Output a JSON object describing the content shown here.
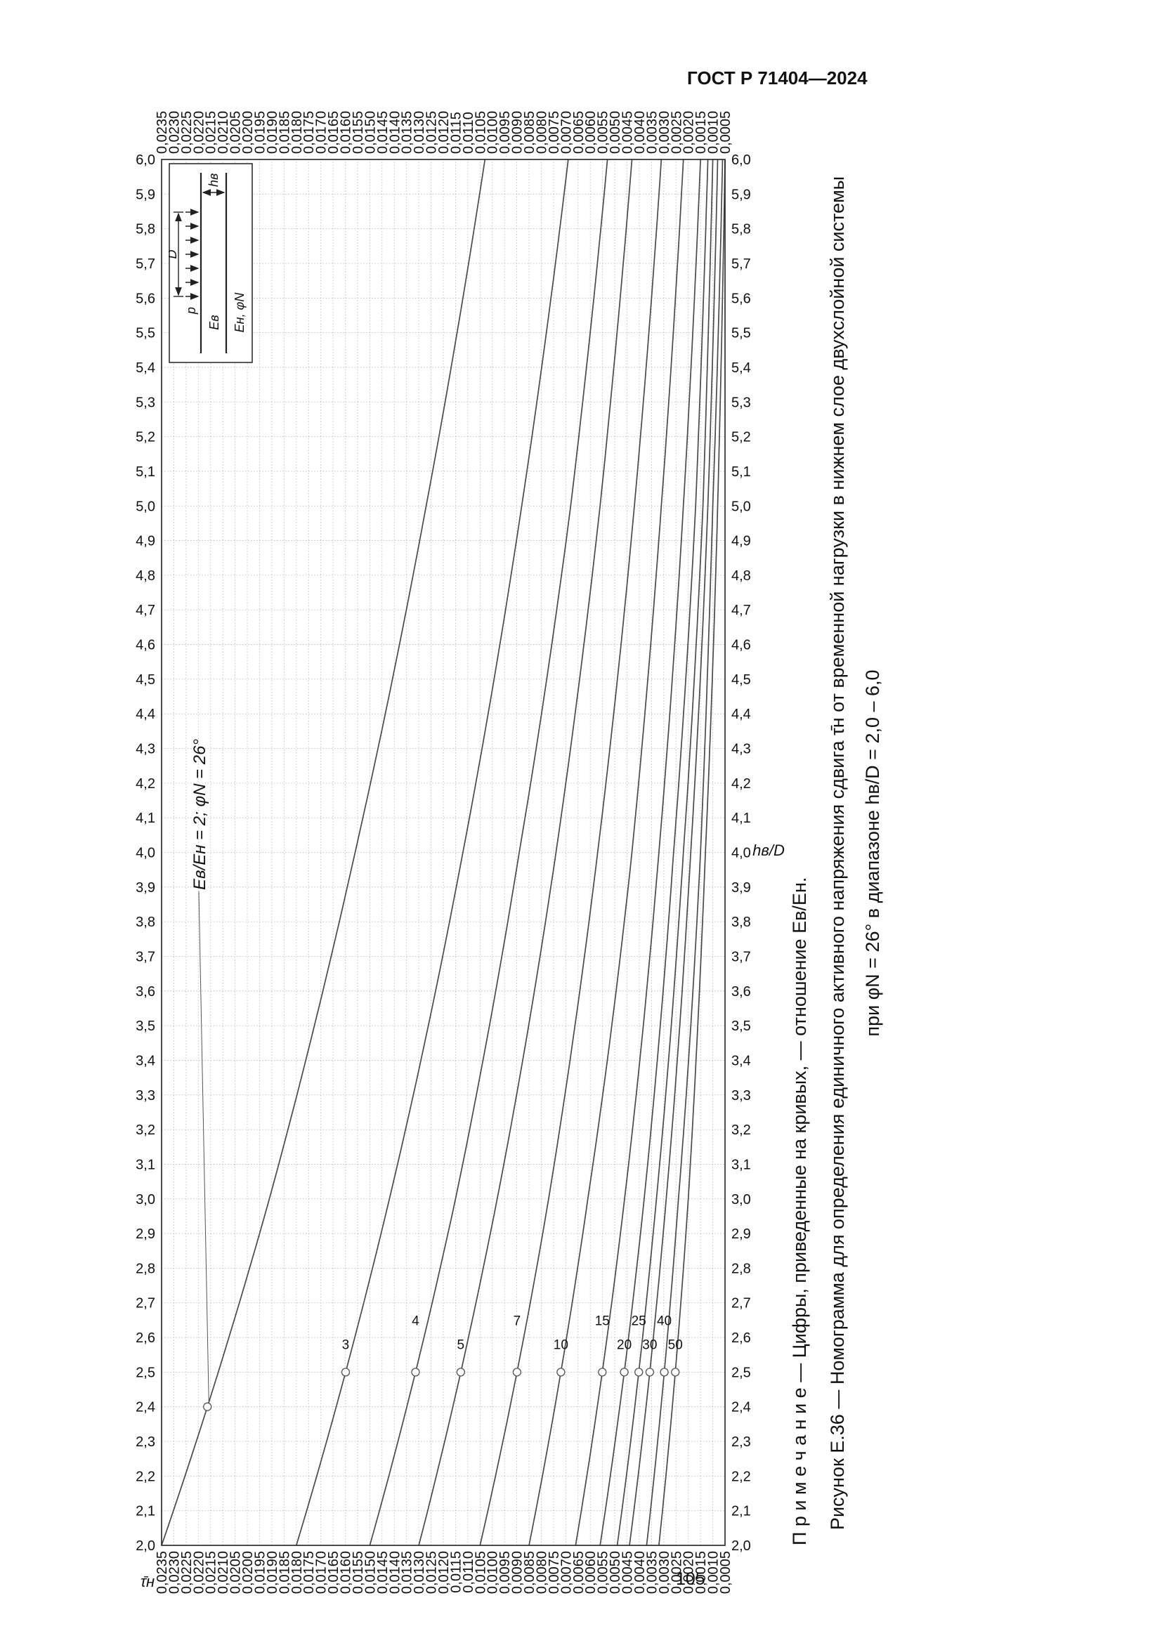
{
  "page": {
    "header": "ГОСТ Р 71404—2024",
    "page_number": "105"
  },
  "figure": {
    "note": "П р и м е ч а н и е — Цифры, приведенные на кривых, — отношение Eв/Eн.",
    "caption_line1": "Рисунок Е.36 — Номограмма для определения единичного активного напряжения сдвига τ̄н от временной нагрузки в нижнем слое двухслойной системы",
    "caption_line2": "при φN = 26° в диапазоне hв/D = 2,0 – 6,0",
    "inset": {
      "load": "p",
      "diameter": "D",
      "layer_top": "Eв",
      "layer_bottom": "Eн, φN",
      "thickness": "hв"
    }
  },
  "chart_data": {
    "type": "line",
    "xlabel": "hв/D",
    "ylabel": "τ̄н",
    "x_range": {
      "min": 2.0,
      "max": 6.0,
      "tick_step": 0.1
    },
    "y_range": {
      "min": 0.0005,
      "max": 0.0235,
      "tick_step": 0.0005
    },
    "grid": true,
    "decimal_separator": ",",
    "annotation": {
      "text": "Eв/Eн = 2; φN = 26°",
      "target_curve": "2",
      "target_x": 2.4
    },
    "curve_label_x": 2.5,
    "x_points": [
      2.0,
      3.0,
      4.0,
      5.0,
      6.0
    ],
    "series": [
      {
        "label": "2",
        "values": [
          0.0235,
          0.0191,
          0.0156,
          0.0127,
          0.0103
        ]
      },
      {
        "label": "3",
        "values": [
          0.018,
          0.0142,
          0.0112,
          0.0088,
          0.0069
        ]
      },
      {
        "label": "4",
        "values": [
          0.015,
          0.0115,
          0.0089,
          0.0068,
          0.0053
        ]
      },
      {
        "label": "5",
        "values": [
          0.013,
          0.0098,
          0.0074,
          0.0056,
          0.0043
        ]
      },
      {
        "label": "7",
        "values": [
          0.0105,
          0.0077,
          0.0057,
          0.0042,
          0.0031
        ]
      },
      {
        "label": "10",
        "values": [
          0.0085,
          0.0061,
          0.0043,
          0.0031,
          0.0022
        ]
      },
      {
        "label": "15",
        "values": [
          0.0066,
          0.0046,
          0.0032,
          0.0022,
          0.0015
        ]
      },
      {
        "label": "20",
        "values": [
          0.0056,
          0.0038,
          0.0026,
          0.0017,
          0.0012
        ]
      },
      {
        "label": "25",
        "values": [
          0.0049,
          0.0033,
          0.0022,
          0.0014,
          0.001
        ]
      },
      {
        "label": "30",
        "values": [
          0.0044,
          0.0029,
          0.0019,
          0.0012,
          0.0008
        ]
      },
      {
        "label": "40",
        "values": [
          0.0037,
          0.0024,
          0.0015,
          0.001,
          0.0006
        ]
      },
      {
        "label": "50",
        "values": [
          0.0032,
          0.002,
          0.0013,
          0.0008,
          0.0005
        ]
      }
    ]
  }
}
